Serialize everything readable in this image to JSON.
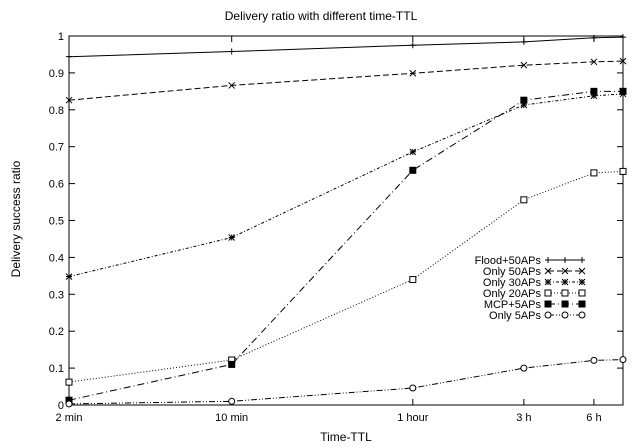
{
  "chart_data": {
    "type": "line",
    "title": "Delivery ratio with different time-TTL",
    "xlabel": "Time-TTL",
    "ylabel": "Delivery success ratio",
    "x_scale": "log",
    "x_ticks": [
      {
        "label": "2 min",
        "minutes": 2
      },
      {
        "label": "10 min",
        "minutes": 10
      },
      {
        "label": "1 hour",
        "minutes": 60
      },
      {
        "label": "3 h",
        "minutes": 180
      },
      {
        "label": "6 h",
        "minutes": 360
      }
    ],
    "x_min_minutes": 2,
    "x_max_minutes": 480,
    "ylim": [
      0,
      1
    ],
    "y_ticks": [
      0,
      0.1,
      0.2,
      0.3,
      0.4,
      0.5,
      0.6,
      0.7,
      0.8,
      0.9,
      1
    ],
    "legend_position": "right",
    "series": [
      {
        "name": "Flood+50APs",
        "marker": "plus",
        "dash": "solid",
        "points": [
          [
            2,
            0.944
          ],
          [
            10,
            0.958
          ],
          [
            60,
            0.975
          ],
          [
            180,
            0.984
          ],
          [
            360,
            0.995
          ],
          [
            480,
            0.997
          ]
        ]
      },
      {
        "name": "Only 50APs",
        "marker": "x",
        "dash": "dashed",
        "points": [
          [
            2,
            0.826
          ],
          [
            10,
            0.866
          ],
          [
            60,
            0.899
          ],
          [
            180,
            0.921
          ],
          [
            360,
            0.93
          ],
          [
            480,
            0.932
          ]
        ]
      },
      {
        "name": "Only 30APs",
        "marker": "star",
        "dash": "dotted-dashed",
        "points": [
          [
            2,
            0.348
          ],
          [
            10,
            0.454
          ],
          [
            60,
            0.686
          ],
          [
            180,
            0.813
          ],
          [
            360,
            0.838
          ],
          [
            480,
            0.843
          ]
        ]
      },
      {
        "name": "Only 20APs",
        "marker": "square-open",
        "dash": "dotted",
        "points": [
          [
            2,
            0.062
          ],
          [
            10,
            0.122
          ],
          [
            60,
            0.34
          ],
          [
            180,
            0.556
          ],
          [
            360,
            0.629
          ],
          [
            480,
            0.633
          ]
        ]
      },
      {
        "name": "MCP+5APs",
        "marker": "square-filled",
        "dash": "dash-dot",
        "points": [
          [
            2,
            0.013
          ],
          [
            10,
            0.11
          ],
          [
            60,
            0.636
          ],
          [
            180,
            0.826
          ],
          [
            360,
            0.85
          ],
          [
            480,
            0.85
          ]
        ]
      },
      {
        "name": "Only 5APs",
        "marker": "circle-open",
        "dash": "dash-dot-dot",
        "points": [
          [
            2,
            0.003
          ],
          [
            10,
            0.01
          ],
          [
            60,
            0.046
          ],
          [
            180,
            0.1
          ],
          [
            360,
            0.121
          ],
          [
            480,
            0.123
          ]
        ]
      }
    ]
  }
}
